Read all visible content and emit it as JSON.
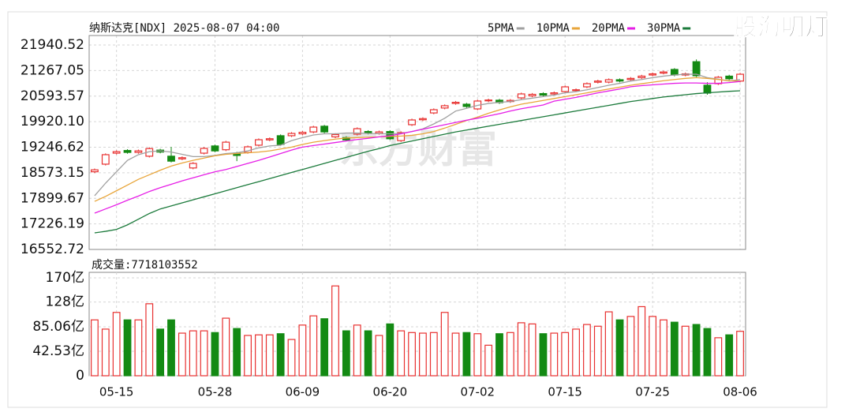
{
  "logo": "股海明灯",
  "chart_data": [
    {
      "type": "candlestick",
      "title": "纳斯达克[NDX] 2025-08-07 04:00",
      "watermark": "东方财富",
      "up_color": "#e8302f",
      "down_color": "#138a13",
      "grid": true,
      "open": [
        18600,
        18800,
        19090,
        19160,
        19110,
        19010,
        19170,
        19010,
        18940,
        18700,
        19090,
        19280,
        19180,
        19090,
        19110,
        19300,
        19440,
        19550,
        19550,
        19600,
        19650,
        19800,
        19520,
        19500,
        19590,
        19660,
        19610,
        19660,
        19420,
        19840,
        19970,
        20150,
        20280,
        20400,
        20380,
        20256,
        20470,
        20485,
        20450,
        20547,
        20600,
        20660,
        20650,
        20713,
        20740,
        20838,
        20960,
        20963,
        21025,
        21030,
        21080,
        21150,
        21200,
        21296,
        21150,
        21500,
        20880,
        20921,
        21120,
        20990
      ],
      "high": [
        18685,
        19085,
        19165,
        19195,
        19185,
        19245,
        19205,
        19255,
        19005,
        18855,
        19251,
        19315,
        19415,
        19125,
        19292,
        19479,
        19505,
        19585,
        19645,
        19675,
        19812,
        19835,
        19615,
        19535,
        19770,
        19695,
        19685,
        19695,
        19665,
        20000,
        20035,
        20270,
        20375,
        20465,
        20415,
        20499,
        20525,
        20520,
        20515,
        20686,
        20675,
        20695,
        20715,
        20873,
        20795,
        20956,
        21025,
        21060,
        21060,
        21095,
        21155,
        21215,
        21265,
        21331,
        21215,
        21560,
        20960,
        21125,
        21155,
        21205
      ],
      "low": [
        18565,
        18765,
        19055,
        19075,
        19075,
        18975,
        19085,
        18845,
        18905,
        18665,
        19055,
        19115,
        19145,
        18880,
        19075,
        19265,
        19405,
        19285,
        19515,
        19565,
        19615,
        19615,
        19485,
        19405,
        19555,
        19585,
        19575,
        19435,
        19385,
        19805,
        19935,
        20115,
        20245,
        20365,
        20285,
        20221,
        20435,
        20387,
        20415,
        20512,
        20565,
        20585,
        20615,
        20678,
        20705,
        20803,
        20925,
        20928,
        20955,
        20995,
        21045,
        21115,
        21165,
        21115,
        21115,
        21095,
        20630,
        20886,
        21015,
        20955
      ],
      "close": [
        18650,
        19050,
        19130,
        19110,
        19150,
        19210,
        19120,
        18880,
        18970,
        18820,
        19216,
        19150,
        19380,
        19030,
        19257,
        19444,
        19470,
        19320,
        19610,
        19640,
        19777,
        19650,
        19580,
        19440,
        19735,
        19620,
        19650,
        19470,
        19630,
        19965,
        20000,
        20235,
        20340,
        20430,
        20320,
        20464,
        20490,
        20422,
        20480,
        20651,
        20640,
        20620,
        20680,
        20838,
        20760,
        20921,
        20990,
        21025,
        20990,
        21060,
        21120,
        21180,
        21230,
        21150,
        21180,
        21130,
        20672,
        21090,
        21050,
        21170
      ],
      "ma": [
        {
          "name": "5PMA",
          "color": "#a0a0a0",
          "values": [
            17968,
            18300,
            18600,
            18900,
            19050,
            19130,
            19150,
            19120,
            19060,
            19000,
            19000,
            19030,
            19080,
            19100,
            19150,
            19230,
            19280,
            19300,
            19420,
            19500,
            19570,
            19600,
            19600,
            19620,
            19620,
            19610,
            19600,
            19600,
            19610,
            19660,
            19730,
            19860,
            20010,
            20200,
            20270,
            20350,
            20400,
            20430,
            20450,
            20500,
            20540,
            20580,
            20620,
            20680,
            20710,
            20760,
            20820,
            20880,
            20930,
            20990,
            21030,
            21080,
            21120,
            21150,
            21170,
            21170,
            21080,
            21040,
            20990,
            21030
          ]
        },
        {
          "name": "10PMA",
          "color": "#e8a53a",
          "values": [
            17820,
            17950,
            18100,
            18250,
            18400,
            18520,
            18640,
            18750,
            18830,
            18900,
            18960,
            19020,
            19060,
            19080,
            19100,
            19120,
            19150,
            19200,
            19250,
            19320,
            19380,
            19420,
            19460,
            19490,
            19500,
            19510,
            19520,
            19530,
            19540,
            19560,
            19600,
            19660,
            19750,
            19850,
            19950,
            20040,
            20140,
            20230,
            20310,
            20380,
            20430,
            20480,
            20530,
            20580,
            20630,
            20680,
            20730,
            20780,
            20830,
            20880,
            20920,
            20960,
            21000,
            21030,
            21060,
            21080,
            21060,
            21030,
            21000,
            20990
          ]
        },
        {
          "name": "20PMA",
          "color": "#e61ee6",
          "values": [
            17510,
            17620,
            17730,
            17850,
            17960,
            18080,
            18180,
            18270,
            18360,
            18440,
            18520,
            18600,
            18660,
            18740,
            18820,
            18900,
            18990,
            19080,
            19170,
            19250,
            19290,
            19330,
            19370,
            19410,
            19450,
            19480,
            19520,
            19550,
            19600,
            19660,
            19720,
            19780,
            19840,
            19900,
            19960,
            20010,
            20070,
            20130,
            20200,
            20260,
            20310,
            20360,
            20460,
            20510,
            20560,
            20620,
            20680,
            20730,
            20780,
            20840,
            20870,
            20890,
            20910,
            20930,
            20940,
            20940,
            20930,
            20930,
            20950,
            20980
          ]
        },
        {
          "name": "30PMA",
          "color": "#1b7a3b",
          "values": [
            16990,
            17030,
            17080,
            17200,
            17350,
            17500,
            17620,
            17700,
            17780,
            17860,
            17940,
            18020,
            18100,
            18180,
            18260,
            18340,
            18420,
            18500,
            18580,
            18660,
            18740,
            18820,
            18900,
            18980,
            19060,
            19140,
            19210,
            19290,
            19350,
            19410,
            19470,
            19530,
            19590,
            19650,
            19700,
            19750,
            19800,
            19850,
            19900,
            19950,
            20000,
            20050,
            20100,
            20150,
            20200,
            20250,
            20300,
            20350,
            20400,
            20450,
            20490,
            20530,
            20570,
            20600,
            20630,
            20660,
            20680,
            20700,
            20720,
            20734
          ]
        }
      ],
      "ylim": [
        16552.72,
        21940.52
      ],
      "yticks": [
        16552.72,
        17226.19,
        17899.67,
        18573.15,
        19246.62,
        {
          "value": 19920.1,
          "label": "19920.10"
        },
        20593.57,
        21267.05,
        21940.52
      ]
    },
    {
      "type": "bar",
      "title": "成交量:7718103552",
      "values": [
        97,
        81,
        110,
        97,
        97,
        125,
        81,
        97,
        74,
        78,
        78,
        75,
        100,
        82,
        70,
        71,
        71,
        73,
        63,
        88,
        104,
        99,
        156,
        78,
        88,
        78,
        70,
        90,
        78,
        75,
        74,
        75,
        110,
        74,
        75,
        73,
        53,
        73,
        75,
        92,
        90,
        73,
        74,
        75,
        81,
        89,
        86,
        111,
        97,
        103,
        120,
        103,
        97,
        93,
        86,
        89,
        82,
        66,
        71,
        77.18
      ],
      "ylim": [
        0,
        170
      ],
      "yticks": [
        0,
        {
          "value": 42.53,
          "label": "42.53亿"
        },
        {
          "value": 85.06,
          "label": "85.06亿"
        },
        {
          "value": 128,
          "label": "128亿"
        },
        {
          "value": 170,
          "label": "170亿"
        }
      ],
      "xticks": [
        {
          "value": 2,
          "label": "05-15"
        },
        {
          "value": 11,
          "label": "05-28"
        },
        {
          "value": 19,
          "label": "06-09"
        },
        {
          "value": 27,
          "label": "06-20"
        },
        {
          "value": 35,
          "label": "07-02"
        },
        {
          "value": 43,
          "label": "07-15"
        },
        {
          "value": 51,
          "label": "07-25"
        },
        {
          "value": 59,
          "label": "08-06"
        }
      ]
    }
  ]
}
